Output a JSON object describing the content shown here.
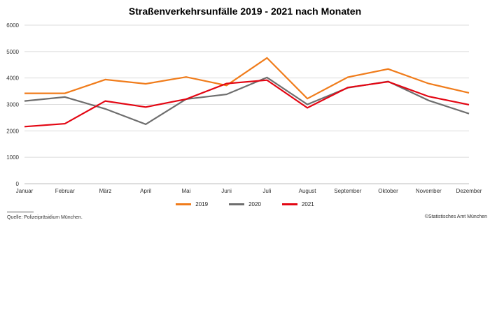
{
  "chart_data": {
    "type": "line",
    "title": "Straßenverkehrsunfälle 2019 - 2021 nach Monaten",
    "categories": [
      "Januar",
      "Februar",
      "März",
      "April",
      "Mai",
      "Juni",
      "Juli",
      "August",
      "September",
      "Oktober",
      "November",
      "Dezember"
    ],
    "ylim": [
      0,
      6000
    ],
    "yticks": [
      0,
      1000,
      2000,
      3000,
      4000,
      5000,
      6000
    ],
    "grid": true,
    "legend_position": "bottom",
    "series": [
      {
        "name": "2019",
        "color": "#f07c1b",
        "values": [
          3420,
          3420,
          3940,
          3780,
          4040,
          3720,
          4760,
          3220,
          4030,
          4340,
          3790,
          3440
        ]
      },
      {
        "name": "2020",
        "color": "#6e6e6e",
        "values": [
          3130,
          3280,
          2830,
          2250,
          3200,
          3380,
          4020,
          3000,
          3630,
          3870,
          3150,
          2650
        ]
      },
      {
        "name": "2021",
        "color": "#e30613",
        "values": [
          2160,
          2270,
          3130,
          2900,
          3200,
          3790,
          3920,
          2870,
          3640,
          3860,
          3300,
          2990
        ]
      }
    ]
  },
  "footer": {
    "source": "Quelle: Polizeipräsidium München.",
    "copyright": "©Statistisches Amt München"
  }
}
